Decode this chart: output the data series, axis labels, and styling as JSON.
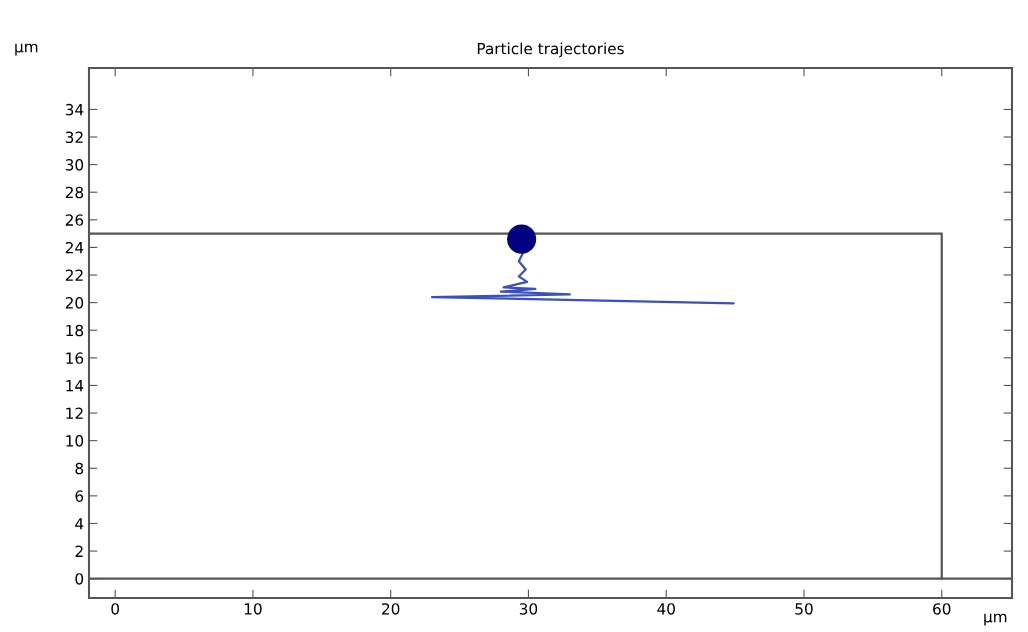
{
  "chart_data": {
    "type": "line",
    "title": "Particle trajectories",
    "xlabel": "µm",
    "ylabel": "µm",
    "xlim": [
      -1.9,
      65.1
    ],
    "ylim": [
      -1.4,
      37
    ],
    "xticks": [
      0,
      10,
      20,
      30,
      40,
      50,
      60
    ],
    "yticks": [
      0,
      2,
      4,
      6,
      8,
      10,
      12,
      14,
      16,
      18,
      20,
      22,
      24,
      26,
      28,
      30,
      32,
      34
    ],
    "grid": false,
    "series": [
      {
        "color": "#555555",
        "x": [
          -1.9,
          60,
          60
        ],
        "values": [
          25,
          25,
          0
        ]
      },
      {
        "color": "#555555",
        "x": [
          -1.9,
          65.1
        ],
        "values": [
          0,
          0
        ]
      },
      {
        "color": "#3a4fc0",
        "x": [
          29.5,
          29.6,
          29.3,
          29.8,
          29.3,
          29.9,
          28.2,
          30.5,
          28.0,
          33.0,
          23.0,
          44.9
        ],
        "values": [
          24.6,
          23.6,
          23.0,
          22.4,
          21.9,
          21.5,
          21.1,
          21.0,
          20.8,
          20.6,
          20.4,
          19.95
        ]
      },
      {
        "type": "scatter",
        "color": "#000080",
        "marker": "circle",
        "x": [
          29.5
        ],
        "values": [
          24.6
        ]
      }
    ]
  }
}
